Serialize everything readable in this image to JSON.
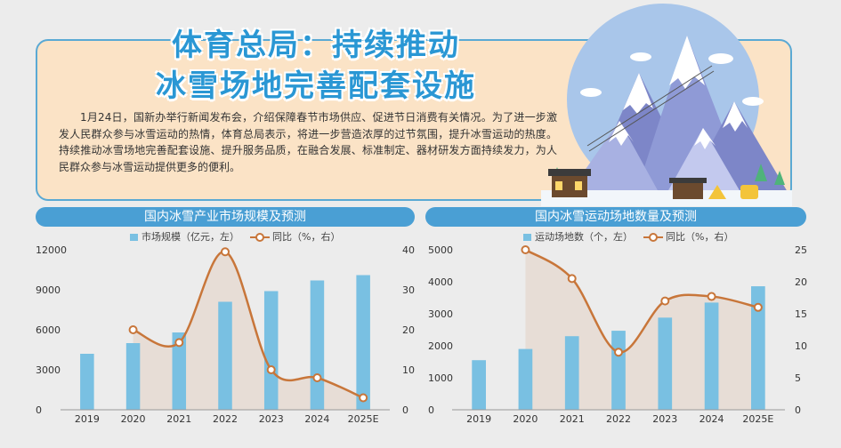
{
  "header": {
    "title_line1": "体育总局：持续推动",
    "title_line2": "冰雪场地完善配套设施",
    "intro": "1月24日，国新办举行新闻发布会，介绍保障春节市场供应、促进节日消费有关情况。为了进一步激发人民群众参与冰雪运动的热情，体育总局表示，将进一步营造浓厚的过节氛围，提升冰雪运动的热度。持续推动冰雪场地完善配套设施、提升服务品质，在融合发展、标准制定、器材研发方面持续发力，为人民群众参与冰雪运动提供更多的便利。"
  },
  "colors": {
    "bar": "#79c0e2",
    "line": "#c8763a",
    "header": "#4a9fd4",
    "title": "#2a97d4"
  },
  "chart_data": [
    {
      "type": "bar",
      "title": "国内冰雪产业市场规模及预测",
      "categories": [
        "2019",
        "2020",
        "2021",
        "2022",
        "2023",
        "2024",
        "2025E"
      ],
      "ylim": [
        0,
        12000
      ],
      "y_ticks": [
        "0",
        "3000",
        "6000",
        "9000",
        "12000"
      ],
      "y2lim": [
        0,
        40
      ],
      "y2_ticks": [
        "0",
        "10",
        "20",
        "30",
        "40"
      ],
      "series": [
        {
          "name": "市场规模（亿元，左）",
          "kind": "bar",
          "axis": "left",
          "values": [
            4200,
            5000,
            5800,
            8100,
            8900,
            9700,
            10100
          ]
        },
        {
          "name": "同比（%，右）",
          "kind": "line",
          "axis": "right",
          "values": [
            null,
            20.0,
            16.8,
            39.5,
            10.0,
            8.0,
            3.0
          ]
        }
      ]
    },
    {
      "type": "bar",
      "title": "国内冰雪运动场地数量及预测",
      "categories": [
        "2019",
        "2020",
        "2021",
        "2022",
        "2023",
        "2024",
        "2025E"
      ],
      "ylim": [
        0,
        5000
      ],
      "y_ticks": [
        "0",
        "1000",
        "2000",
        "3000",
        "4000",
        "5000"
      ],
      "y2lim": [
        0,
        25
      ],
      "y2_ticks": [
        "0",
        "5",
        "10",
        "15",
        "20",
        "25"
      ],
      "series": [
        {
          "name": "运动场地数（个，左）",
          "kind": "bar",
          "axis": "left",
          "values": [
            1550,
            1900,
            2300,
            2470,
            2880,
            3350,
            3860
          ]
        },
        {
          "name": "同比（%，右）",
          "kind": "line",
          "axis": "right",
          "values": [
            null,
            25.0,
            20.5,
            9.0,
            17.0,
            17.7,
            16.0
          ]
        }
      ]
    }
  ]
}
